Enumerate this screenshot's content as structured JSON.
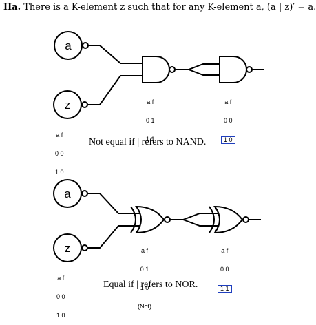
{
  "heading": {
    "prefix": "IIa.",
    "text": "There is a K-element z such that for any K-element a, (a | z)′ = a."
  },
  "top_circuit": {
    "inputs": [
      "a",
      "z"
    ],
    "gate_type": "NAND",
    "z_table": {
      "header": "a f",
      "rows": [
        "0 0",
        "1 0"
      ]
    },
    "gate1_table": {
      "header": "a f",
      "rows": [
        "0 1",
        "1 1"
      ]
    },
    "gate2_table": {
      "header": "a f",
      "rows": [
        "0 0",
        "1 0"
      ]
    },
    "caption": "Not equal if | refers to NAND."
  },
  "bottom_circuit": {
    "inputs": [
      "a",
      "z"
    ],
    "gate_type": "NOR",
    "z_table": {
      "header": "a f",
      "rows": [
        "0 0",
        "1 0"
      ]
    },
    "gate1_table": {
      "header": "a f",
      "rows": [
        "0 1",
        "1 0"
      ],
      "note": "(Not)"
    },
    "gate2_table": {
      "header": "a f",
      "rows": [
        "0 0",
        "1 1"
      ]
    },
    "caption": "Equal if | refers to NOR."
  }
}
